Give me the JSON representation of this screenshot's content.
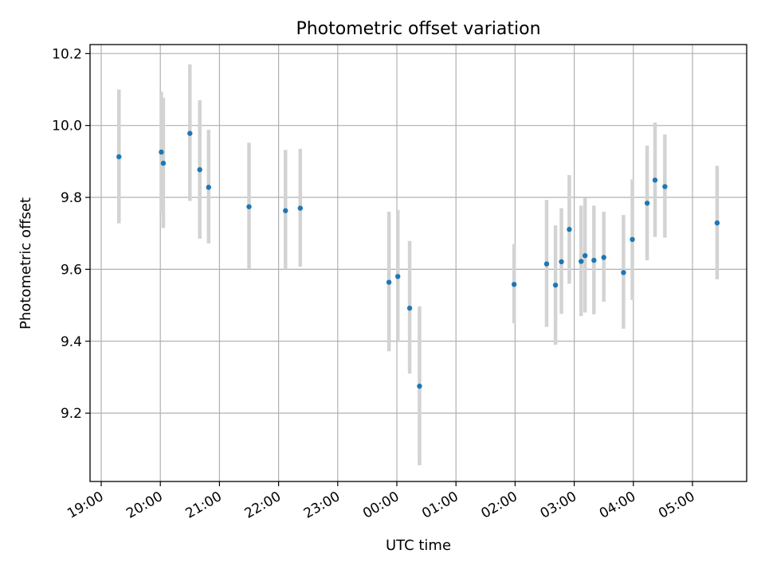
{
  "chart_data": {
    "type": "scatter",
    "title": "Photometric offset variation",
    "xlabel": "UTC time",
    "ylabel": "Photometric offset",
    "grid": true,
    "legend": "none",
    "x_axis": {
      "kind": "time",
      "start_datetime": "19:00",
      "end_datetime": "05:55 (next day)",
      "ticks": [
        "19:00",
        "20:00",
        "21:00",
        "22:00",
        "23:00",
        "00:00",
        "01:00",
        "02:00",
        "03:00",
        "04:00",
        "05:00"
      ],
      "tick_label_rotation": "30"
    },
    "y_axis": {
      "ylim": [
        9.01,
        10.225
      ],
      "ticks": [
        9.2,
        9.4,
        9.6,
        9.8,
        10.0,
        10.2
      ],
      "tick_labels": [
        "9.2",
        "9.4",
        "9.6",
        "9.8",
        "10.0",
        "10.2"
      ]
    },
    "colors": {
      "marker": "#1f77b4",
      "errorbar": "#d3d3d3",
      "grid": "#b0b0b0"
    },
    "points": [
      {
        "time": "19:18",
        "y": 9.913,
        "ymin": 9.728,
        "ymax": 10.1
      },
      {
        "time": "20:01",
        "y": 9.926,
        "ymin": 9.755,
        "ymax": 10.094
      },
      {
        "time": "20:03",
        "y": 9.895,
        "ymin": 9.715,
        "ymax": 10.077
      },
      {
        "time": "20:30",
        "y": 9.978,
        "ymin": 9.79,
        "ymax": 10.17
      },
      {
        "time": "20:40",
        "y": 9.877,
        "ymin": 9.685,
        "ymax": 10.07
      },
      {
        "time": "20:49",
        "y": 9.828,
        "ymin": 9.672,
        "ymax": 9.988
      },
      {
        "time": "21:30",
        "y": 9.774,
        "ymin": 9.6,
        "ymax": 9.952
      },
      {
        "time": "22:07",
        "y": 9.763,
        "ymin": 9.6,
        "ymax": 9.932
      },
      {
        "time": "22:22",
        "y": 9.77,
        "ymin": 9.607,
        "ymax": 9.935
      },
      {
        "time": "23:52",
        "y": 9.564,
        "ymin": 9.372,
        "ymax": 9.76
      },
      {
        "time": "00:01",
        "y": 9.58,
        "ymin": 9.4,
        "ymax": 9.765
      },
      {
        "time": "00:13",
        "y": 9.492,
        "ymin": 9.31,
        "ymax": 9.679
      },
      {
        "time": "00:23",
        "y": 9.275,
        "ymin": 9.055,
        "ymax": 9.497
      },
      {
        "time": "01:59",
        "y": 9.558,
        "ymin": 9.45,
        "ymax": 9.67
      },
      {
        "time": "02:32",
        "y": 9.615,
        "ymin": 9.44,
        "ymax": 9.793
      },
      {
        "time": "02:41",
        "y": 9.556,
        "ymin": 9.39,
        "ymax": 9.722
      },
      {
        "time": "02:47",
        "y": 9.621,
        "ymin": 9.476,
        "ymax": 9.77
      },
      {
        "time": "02:55",
        "y": 9.711,
        "ymin": 9.56,
        "ymax": 9.862
      },
      {
        "time": "03:07",
        "y": 9.622,
        "ymin": 9.47,
        "ymax": 9.777
      },
      {
        "time": "03:11",
        "y": 9.638,
        "ymin": 9.48,
        "ymax": 9.798
      },
      {
        "time": "03:20",
        "y": 9.625,
        "ymin": 9.475,
        "ymax": 9.777
      },
      {
        "time": "03:30",
        "y": 9.633,
        "ymin": 9.51,
        "ymax": 9.76
      },
      {
        "time": "03:50",
        "y": 9.591,
        "ymin": 9.435,
        "ymax": 9.751
      },
      {
        "time": "03:59",
        "y": 9.683,
        "ymin": 9.515,
        "ymax": 9.85
      },
      {
        "time": "04:14",
        "y": 9.784,
        "ymin": 9.625,
        "ymax": 9.944
      },
      {
        "time": "04:22",
        "y": 9.848,
        "ymin": 9.69,
        "ymax": 10.008
      },
      {
        "time": "04:32",
        "y": 9.83,
        "ymin": 9.688,
        "ymax": 9.975
      },
      {
        "time": "05:25",
        "y": 9.729,
        "ymin": 9.572,
        "ymax": 9.888
      }
    ]
  }
}
